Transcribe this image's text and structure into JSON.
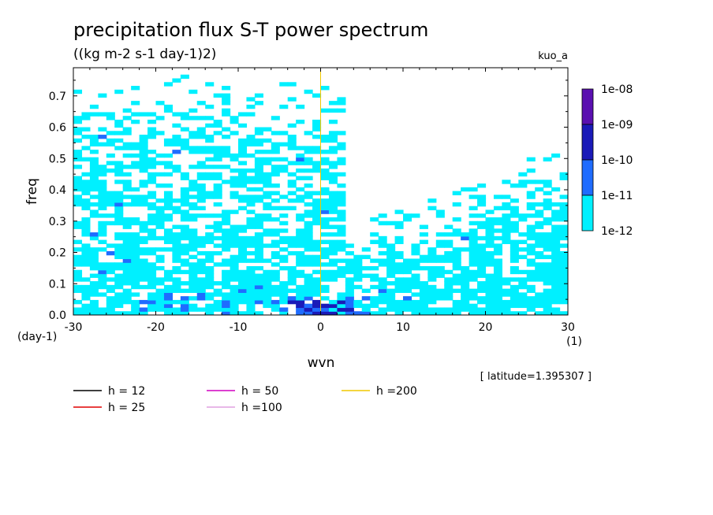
{
  "chart_data": {
    "type": "heatmap",
    "title": "precipitation flux S-T power spectrum",
    "subtitle": "((kg m-2 s-1 day-1)2)",
    "model_label": "kuo_a",
    "xlabel": "wvn",
    "ylabel": "freq",
    "x_unit": "(1)",
    "y_unit": "(day-1)",
    "xlim": [
      -30,
      30
    ],
    "ylim": [
      0,
      0.79
    ],
    "x_ticks": [
      -30,
      -20,
      -10,
      0,
      10,
      20,
      30
    ],
    "x_tick_labels": [
      "-30",
      "-20",
      "-10",
      "0",
      "10",
      "20",
      "30"
    ],
    "y_ticks": [
      0,
      0.1,
      0.2,
      0.3,
      0.4,
      0.5,
      0.6,
      0.7
    ],
    "y_tick_labels": [
      "0.0",
      "0.1",
      "0.2",
      "0.3",
      "0.4",
      "0.5",
      "0.6",
      "0.7"
    ],
    "annotation": "[ latitude=1.395307 ]",
    "colorbar": {
      "levels": [
        "1e-08",
        "1e-09",
        "1e-10",
        "1e-11",
        "1e-12"
      ],
      "colors": [
        "#5a10b0",
        "#1a1ab8",
        "#1f6cff",
        "#00f0ff"
      ]
    },
    "field_colors": {
      "low": "#00f0ff",
      "mid": "#1f6cff",
      "high": "#1a1ab8",
      "top": "#5a10b0"
    },
    "dispersion_curves": [
      {
        "name": "h = 12",
        "h": 12,
        "color": "#000000"
      },
      {
        "name": "h = 25",
        "h": 25,
        "color": "#e00000"
      },
      {
        "name": "h = 50",
        "h": 50,
        "color": "#d000c0"
      },
      {
        "name": "h =100",
        "h": 100,
        "color": "#e0a0e0"
      },
      {
        "name": "h =200",
        "h": 200,
        "color": "#f0c800"
      }
    ]
  }
}
